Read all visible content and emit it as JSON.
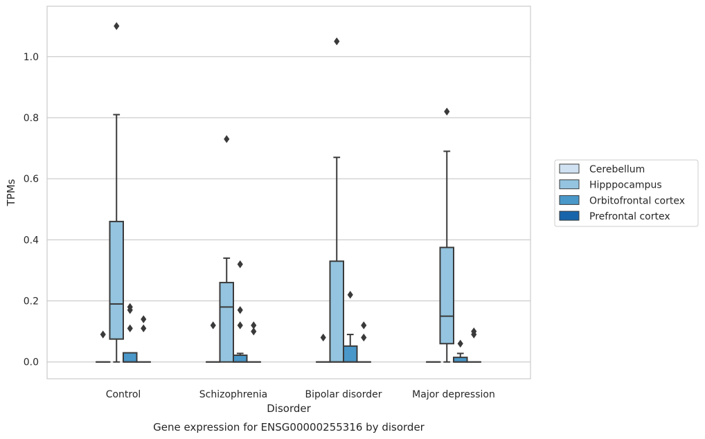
{
  "caption": "Gene expression for ENSG00000255316 by disorder",
  "colors": {
    "Cerebellum": "#d0e1f2",
    "Hipppocampus": "#94c4df",
    "Orbitofrontal cortex": "#4a98c9",
    "Prefrontal cortex": "#1764ab",
    "edge": "#3a3a3a",
    "grid": "#cccccc",
    "frame": "#cccccc"
  },
  "chart_data": {
    "type": "box",
    "title": "",
    "xlabel": "Disorder",
    "ylabel": "TPMs",
    "ylim": [
      -0.055,
      1.165
    ],
    "yticks": [
      0.0,
      0.2,
      0.4,
      0.6,
      0.8,
      1.0
    ],
    "ytick_labels": [
      "0.0",
      "0.2",
      "0.4",
      "0.6",
      "0.8",
      "1.0"
    ],
    "grid": "horizontal",
    "legend_position": "right",
    "categories": [
      "Control",
      "Schizophrenia",
      "Bipolar disorder",
      "Major depression"
    ],
    "series": [
      {
        "name": "Cerebellum",
        "boxes": [
          {
            "whislo": 0,
            "q1": 0,
            "med": 0,
            "q3": 0,
            "whishi": 0,
            "fliers": [
              0.09
            ]
          },
          {
            "whislo": 0,
            "q1": 0,
            "med": 0,
            "q3": 0,
            "whishi": 0,
            "fliers": [
              0.12
            ]
          },
          {
            "whislo": 0,
            "q1": 0,
            "med": 0,
            "q3": 0,
            "whishi": 0,
            "fliers": [
              0.08
            ]
          },
          {
            "whislo": 0,
            "q1": 0,
            "med": 0,
            "q3": 0,
            "whishi": 0,
            "fliers": []
          }
        ]
      },
      {
        "name": "Hipppocampus",
        "boxes": [
          {
            "whislo": 0,
            "q1": 0.075,
            "med": 0.19,
            "q3": 0.46,
            "whishi": 0.81,
            "fliers": [
              1.1
            ]
          },
          {
            "whislo": 0,
            "q1": 0,
            "med": 0.18,
            "q3": 0.26,
            "whishi": 0.34,
            "fliers": [
              0.73
            ]
          },
          {
            "whislo": 0,
            "q1": 0,
            "med": 0,
            "q3": 0.33,
            "whishi": 0.67,
            "fliers": [
              1.05
            ]
          },
          {
            "whislo": 0,
            "q1": 0.06,
            "med": 0.15,
            "q3": 0.375,
            "whishi": 0.69,
            "fliers": [
              0.82
            ]
          }
        ]
      },
      {
        "name": "Orbitofrontal cortex",
        "boxes": [
          {
            "whislo": 0,
            "q1": 0,
            "med": 0,
            "q3": 0.03,
            "whishi": 0.03,
            "fliers": [
              0.18,
              0.17,
              0.11
            ]
          },
          {
            "whislo": 0,
            "q1": 0,
            "med": 0,
            "q3": 0.022,
            "whishi": 0.028,
            "fliers": [
              0.32,
              0.17,
              0.12
            ]
          },
          {
            "whislo": 0,
            "q1": 0,
            "med": 0,
            "q3": 0.052,
            "whishi": 0.09,
            "fliers": [
              0.22
            ]
          },
          {
            "whislo": 0,
            "q1": 0,
            "med": 0,
            "q3": 0.015,
            "whishi": 0.028,
            "fliers": [
              0.06
            ]
          }
        ]
      },
      {
        "name": "Prefrontal cortex",
        "boxes": [
          {
            "whislo": 0,
            "q1": 0,
            "med": 0,
            "q3": 0,
            "whishi": 0,
            "fliers": [
              0.14,
              0.11
            ]
          },
          {
            "whislo": 0,
            "q1": 0,
            "med": 0,
            "q3": 0,
            "whishi": 0,
            "fliers": [
              0.12,
              0.1
            ]
          },
          {
            "whislo": 0,
            "q1": 0,
            "med": 0,
            "q3": 0,
            "whishi": 0,
            "fliers": [
              0.12,
              0.08
            ]
          },
          {
            "whislo": 0,
            "q1": 0,
            "med": 0,
            "q3": 0,
            "whishi": 0,
            "fliers": [
              0.1,
              0.09
            ]
          }
        ]
      }
    ]
  }
}
